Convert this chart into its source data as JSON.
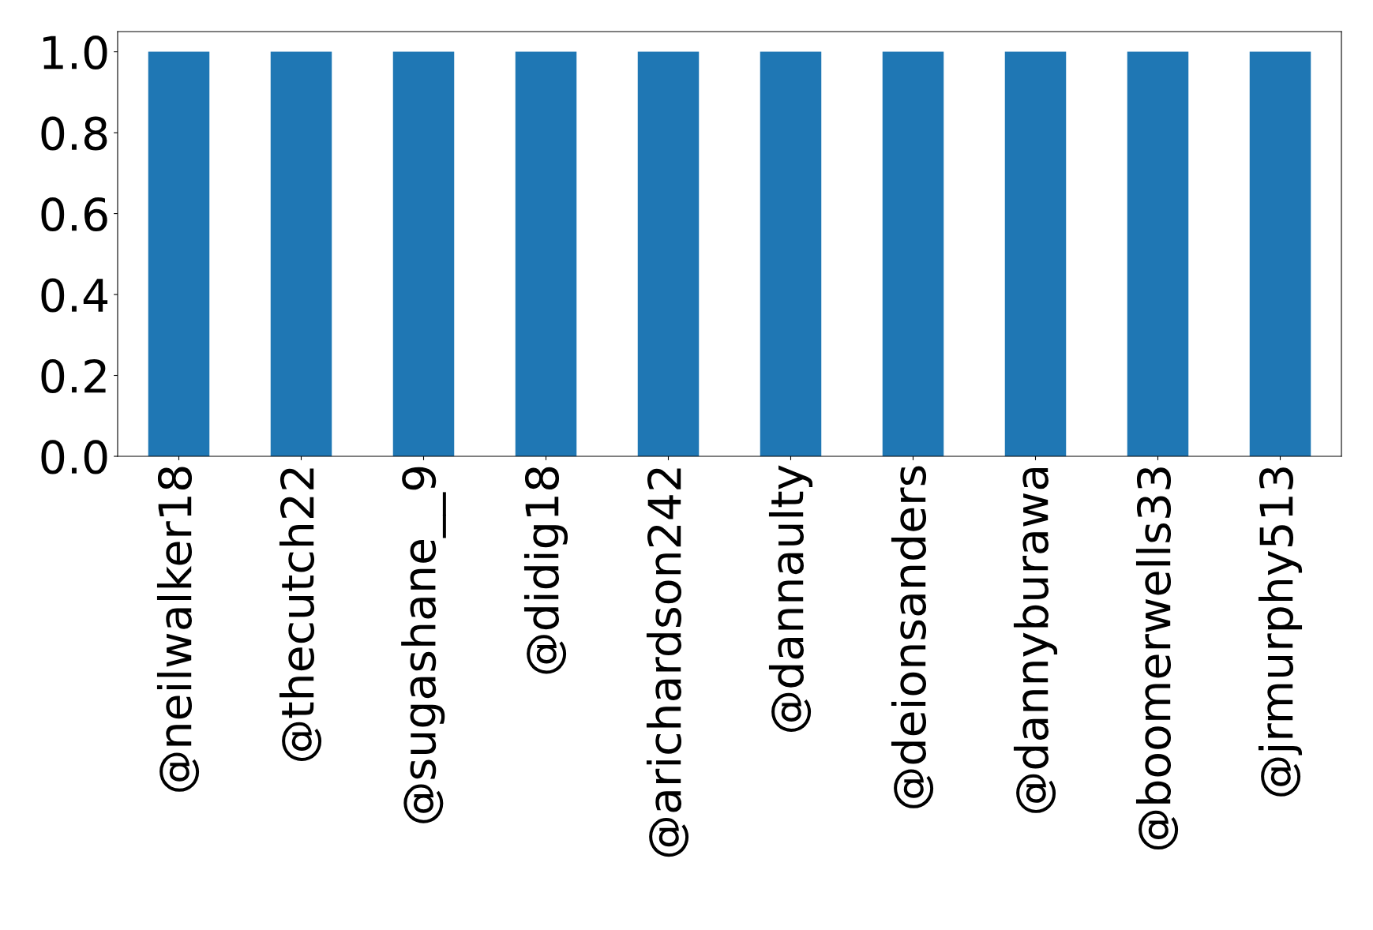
{
  "chart_data": {
    "type": "bar",
    "categories": [
      "@neilwalker18",
      "@thecutch22",
      "@sugashane__9",
      "@didig18",
      "@arichardson242",
      "@dannaulty",
      "@deionsanders",
      "@dannyburawa",
      "@boomerwells33",
      "@jrmurphy513"
    ],
    "values": [
      1,
      1,
      1,
      1,
      1,
      1,
      1,
      1,
      1,
      1
    ],
    "color": "#1f77b4",
    "ylim": [
      0,
      1.05
    ],
    "yticks": [
      {
        "value": 0,
        "label": "0.0"
      },
      {
        "value": 0.2,
        "label": "0.2"
      },
      {
        "value": 0.4,
        "label": "0.4"
      },
      {
        "value": 0.6,
        "label": "0.6"
      },
      {
        "value": 0.8,
        "label": "0.8"
      },
      {
        "value": 1,
        "label": "1.0"
      }
    ],
    "grid": false
  }
}
